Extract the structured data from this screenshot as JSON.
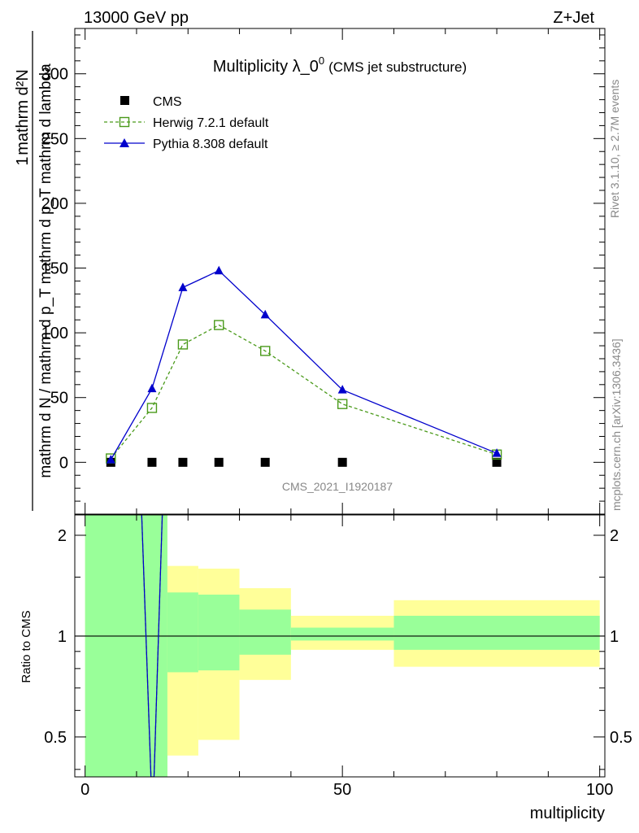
{
  "header": {
    "energy_label": "13000 GeV pp",
    "process_label": "Z+Jet",
    "rivet_label": "Rivet 3.1.10, ≥ 2.7M events",
    "mcplots_label": "mcplots.cern.ch [arXiv:1306.3436]",
    "analysis_label": "CMS_2021_I1920187"
  },
  "chart_data": [
    {
      "type": "line",
      "title": "Multiplicity λ_0",
      "title_sup": "0",
      "subtitle": "(CMS jet substructure)",
      "ylabel_num": "1",
      "ylabel_num2": "mathrm d²N",
      "ylabel_den": "mathrm d N / mathrm d p_T mathrm d p_T mathrm d lambda",
      "xlim": [
        -2,
        101
      ],
      "ylim": [
        -40,
        335
      ],
      "yticks": [
        0,
        50,
        100,
        150,
        200,
        250,
        300
      ],
      "xticks": [
        0,
        50,
        100
      ],
      "grid": false,
      "legend_position": "top-left",
      "series": [
        {
          "name": "CMS",
          "marker": "square-filled",
          "color": "#000000",
          "x": [
            5,
            13,
            19,
            26,
            35,
            50,
            80
          ],
          "y": [
            0,
            0,
            0,
            0,
            0,
            0,
            0
          ]
        },
        {
          "name": "Herwig 7.2.1 default",
          "marker": "square-open",
          "line": "dashed",
          "color": "#4a9a1a",
          "x": [
            5,
            13,
            19,
            26,
            35,
            50,
            80
          ],
          "y": [
            3,
            42,
            91,
            106,
            86,
            45,
            6
          ]
        },
        {
          "name": "Pythia 8.308 default",
          "marker": "triangle-filled",
          "line": "solid",
          "color": "#0000cc",
          "x": [
            5,
            13,
            19,
            26,
            35,
            50,
            80
          ],
          "y": [
            2,
            57,
            135,
            148,
            114,
            56,
            7
          ]
        }
      ]
    },
    {
      "type": "area",
      "ylabel": "Ratio to CMS",
      "xlabel": "multiplicity",
      "xlim": [
        -2,
        101
      ],
      "ylim": [
        0.38,
        2.3
      ],
      "yticks": [
        0.5,
        1,
        2
      ],
      "xticks": [
        0,
        50,
        100
      ],
      "reference_line": 1,
      "bands": [
        {
          "x0": 0,
          "x1": 16,
          "green": [
            0.38,
            2.3
          ],
          "yellow": [
            0.38,
            2.3
          ]
        },
        {
          "x0": 16,
          "x1": 22,
          "green": [
            0.78,
            1.35
          ],
          "yellow": [
            0.44,
            1.62
          ]
        },
        {
          "x0": 22,
          "x1": 30,
          "green": [
            0.79,
            1.33
          ],
          "yellow": [
            0.49,
            1.59
          ]
        },
        {
          "x0": 30,
          "x1": 40,
          "green": [
            0.88,
            1.2
          ],
          "yellow": [
            0.74,
            1.39
          ]
        },
        {
          "x0": 40,
          "x1": 60,
          "green": [
            0.97,
            1.06
          ],
          "yellow": [
            0.91,
            1.15
          ]
        },
        {
          "x0": 60,
          "x1": 100,
          "green": [
            0.91,
            1.15
          ],
          "yellow": [
            0.81,
            1.28
          ]
        }
      ],
      "series": [
        {
          "name": "Herwig 7.2.1 default",
          "line": "dashed",
          "color": "#4a9a1a",
          "x": [
            11,
            12.8,
            13.4,
            15
          ],
          "y": [
            2.3,
            0.38,
            0.38,
            2.3
          ]
        },
        {
          "name": "Pythia 8.308 default",
          "line": "solid",
          "color": "#0000cc",
          "x": [
            11,
            12.8,
            13.4,
            15
          ],
          "y": [
            2.3,
            0.38,
            0.38,
            2.3
          ]
        }
      ]
    }
  ],
  "colors": {
    "band_green": "#99ff99",
    "band_yellow": "#ffff99",
    "label_gray": "#888888"
  }
}
